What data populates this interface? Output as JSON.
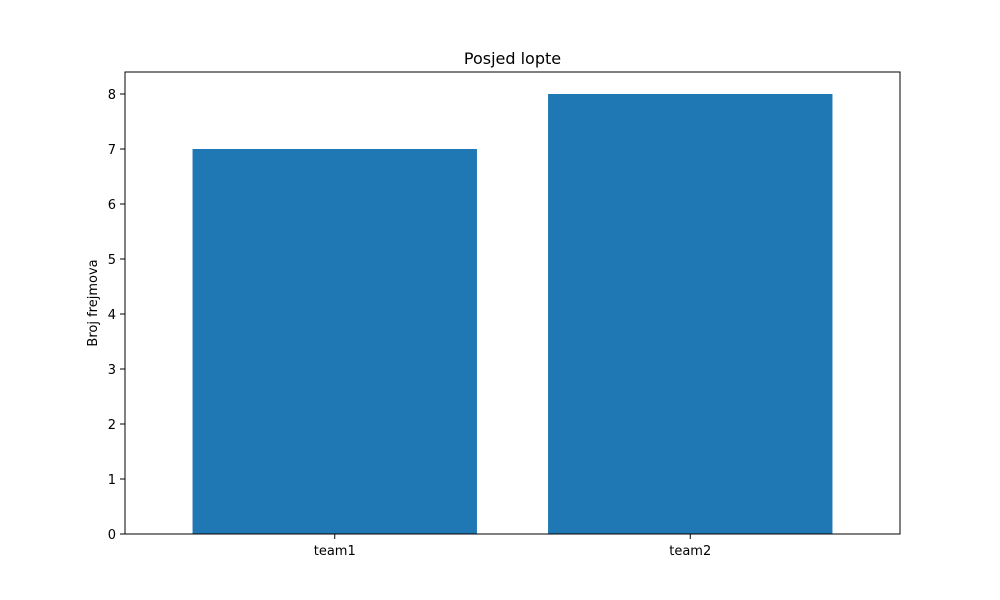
{
  "chart_data": {
    "type": "bar",
    "title": "Posjed lopte",
    "xlabel": "",
    "ylabel": "Broj frejmova",
    "categories": [
      "team1",
      "team2"
    ],
    "values": [
      7,
      8
    ],
    "ylim": [
      0,
      8.4
    ],
    "yticks": [
      0,
      1,
      2,
      3,
      4,
      5,
      6,
      7,
      8
    ],
    "bar_color": "#1f77b4",
    "grid": false,
    "legend": "none"
  }
}
